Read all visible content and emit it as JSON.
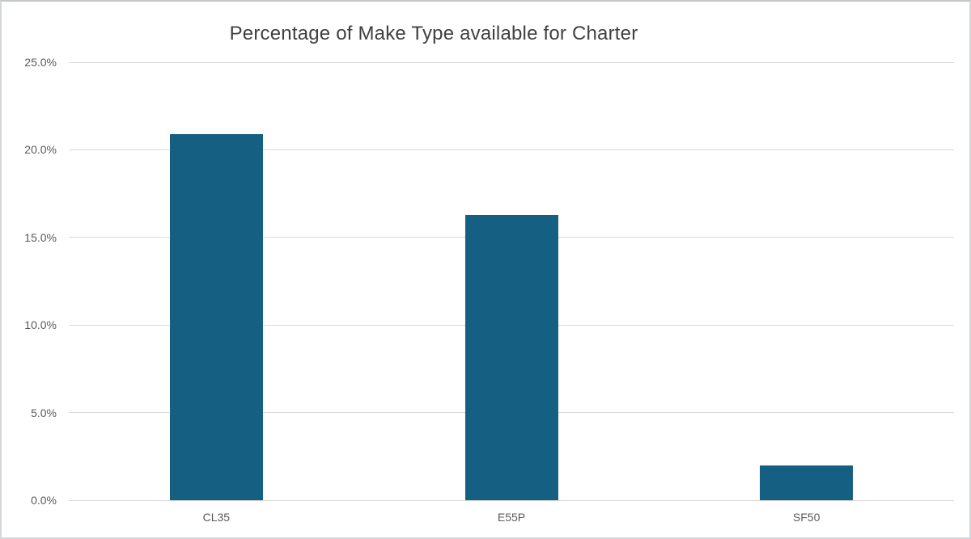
{
  "chart_data": {
    "type": "bar",
    "title": "Percentage of Make Type available for Charter",
    "categories": [
      "CL35",
      "E55P",
      "SF50"
    ],
    "values": [
      20.9,
      16.3,
      2.0
    ],
    "value_unit": "percent",
    "xlabel": "",
    "ylabel": "",
    "ylim": [
      0,
      25
    ],
    "tick_step": 5,
    "y_tick_labels": [
      "0.0%",
      "5.0%",
      "10.0%",
      "15.0%",
      "20.0%",
      "25.0%"
    ],
    "grid": true,
    "legend": "none",
    "colors": {
      "bar": "#156082",
      "gridline": "#d9d9d9",
      "title_text": "#404040",
      "tick_text": "#595959",
      "background": "#ffffff",
      "frame_border": "#d4d7da"
    }
  }
}
